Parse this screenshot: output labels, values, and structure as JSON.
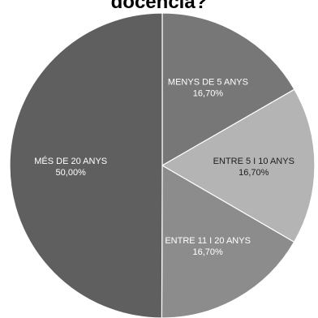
{
  "chart_data": {
    "type": "pie",
    "title": "docència?",
    "slices": [
      {
        "label": "MENYS DE 5 ANYS",
        "value": 16.7,
        "display": "16,70%",
        "color": "#777777"
      },
      {
        "label": "ENTRE 5 I 10 ANYS",
        "value": 16.7,
        "display": "16,70%",
        "color": "#b4b4b4"
      },
      {
        "label": "ENTRE 11 I 20 ANYS",
        "value": 16.7,
        "display": "16,70%",
        "color": "#8c8c8c"
      },
      {
        "label": "MÉS DE 20 ANYS",
        "value": 50.0,
        "display": "50,00%",
        "color": "#5f5f5f"
      }
    ],
    "start_angle": "top",
    "direction": "clockwise",
    "legend": "none"
  }
}
